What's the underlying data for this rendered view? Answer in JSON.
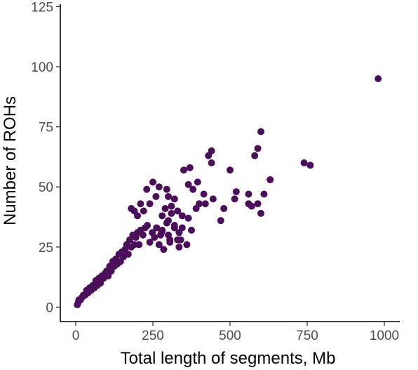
{
  "chart_data": {
    "type": "scatter",
    "title": "",
    "xlabel": "Total length of segments, Mb",
    "ylabel": "Number of ROHs",
    "xlim": [
      -50,
      1050
    ],
    "ylim": [
      -6,
      126
    ],
    "x_ticks": [
      0,
      250,
      500,
      750,
      1000
    ],
    "y_ticks": [
      0,
      25,
      50,
      75,
      100,
      125
    ],
    "x_tick_labels": [
      "0",
      "250",
      "500",
      "750",
      "1000"
    ],
    "y_tick_labels": [
      "0",
      "25",
      "50",
      "75",
      "100",
      "125"
    ],
    "grid": false,
    "legend": "none",
    "point_color": "#4b0e5a",
    "series": [
      {
        "x": [
          980,
          760,
          740,
          630,
          610,
          600,
          590,
          580,
          570,
          560,
          560,
          520,
          515,
          500,
          480,
          470,
          445,
          440,
          430,
          415,
          395,
          370,
          365,
          350,
          330,
          320,
          310,
          300,
          295,
          280,
          270,
          260,
          250,
          240,
          230,
          220,
          210,
          200,
          190,
          180,
          600,
          590,
          440,
          420,
          400,
          390,
          380,
          375,
          365,
          360,
          345,
          335,
          330,
          320,
          310,
          305,
          300,
          290,
          280,
          275,
          345,
          340,
          335,
          320,
          305,
          300,
          295,
          285,
          278,
          270,
          262,
          255,
          248,
          240,
          232,
          225,
          218,
          210,
          205,
          200,
          195,
          190,
          185,
          180,
          175,
          170,
          165,
          160,
          155,
          150,
          145,
          140,
          135,
          130,
          125,
          120,
          115,
          110,
          105,
          100,
          95,
          90,
          85,
          80,
          75,
          70,
          65,
          60,
          55,
          50,
          45,
          40,
          35,
          30,
          25,
          20,
          15,
          10,
          8,
          5
        ],
        "y": [
          95,
          59,
          60,
          53,
          47,
          39,
          43,
          63,
          42,
          47,
          43,
          48,
          45,
          57,
          41,
          36,
          45,
          65,
          63,
          47,
          52,
          58,
          51,
          57,
          40,
          45,
          42,
          46,
          49,
          38,
          50,
          46,
          52,
          43,
          49,
          40,
          43,
          38,
          40,
          41,
          73,
          66,
          60,
          43,
          43,
          41,
          49,
          32,
          37,
          26,
          33,
          31,
          28,
          34,
          39,
          27,
          36,
          41,
          32,
          30,
          38,
          28,
          25,
          33,
          28,
          30,
          35,
          24,
          31,
          26,
          33,
          29,
          31,
          27,
          34,
          33,
          30,
          32,
          26,
          31,
          29,
          26,
          30,
          25,
          28,
          22,
          26,
          24,
          21,
          23,
          19,
          22,
          18,
          20,
          17,
          19,
          15,
          17,
          13,
          15,
          14,
          12,
          13,
          10,
          12,
          9,
          11,
          8,
          9,
          7,
          8,
          6,
          7,
          5,
          5,
          4,
          3,
          3,
          2,
          1
        ]
      }
    ]
  }
}
